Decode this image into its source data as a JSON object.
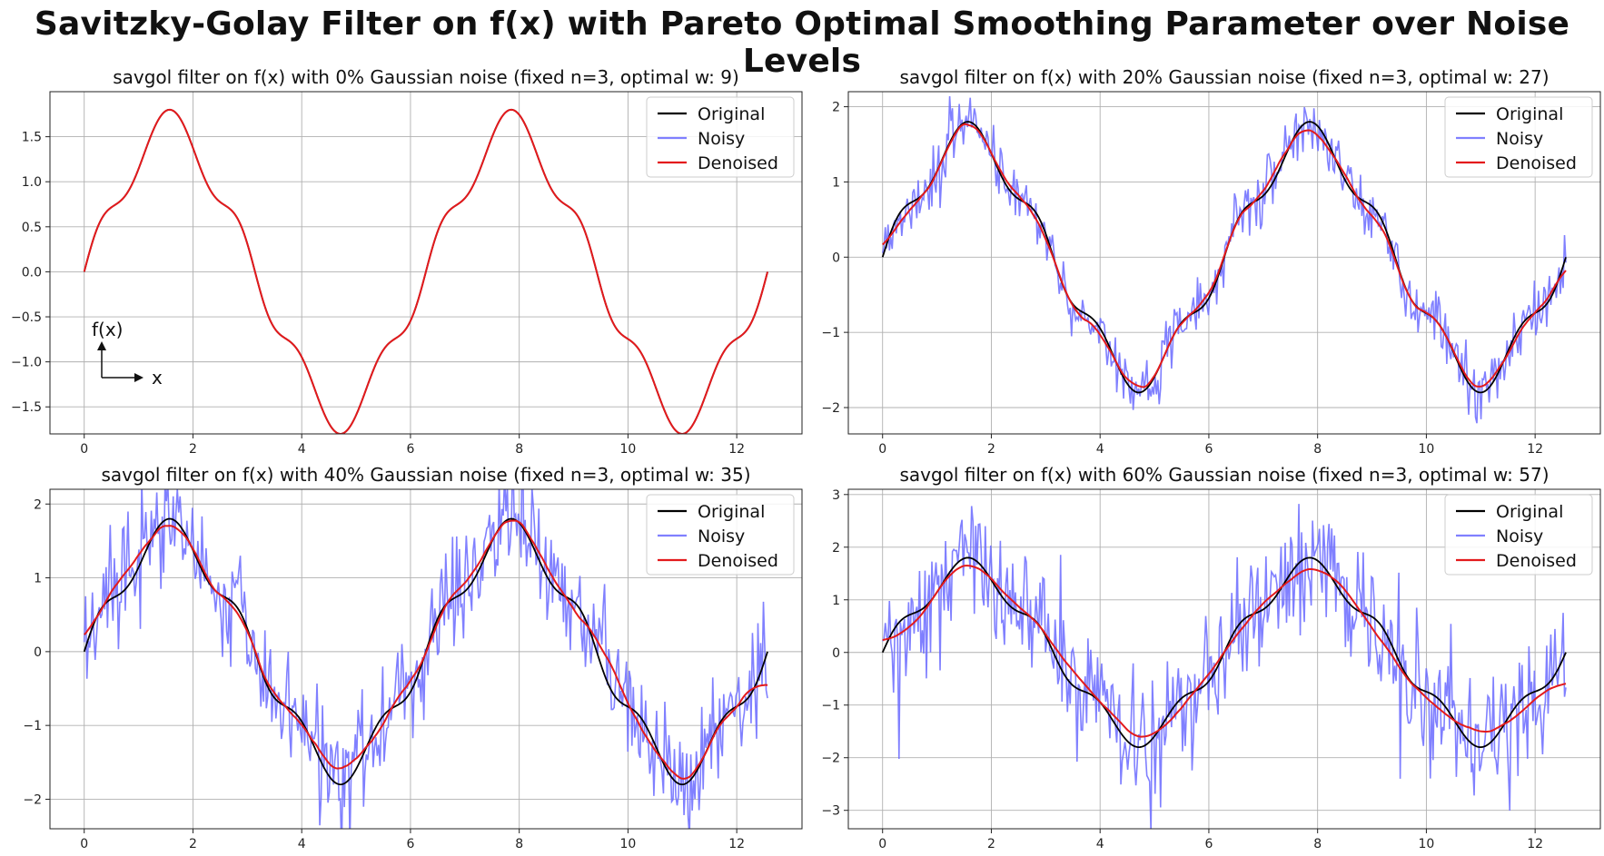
{
  "suptitle": "Savitzky-Golay Filter on f(x) with Pareto Optimal Smoothing Parameter over Noise Levels",
  "colors": {
    "original": "#000000",
    "noisy": "#6a6aff",
    "denoised": "#e31a1c",
    "grid": "#b0b0b0"
  },
  "chart_data": [
    {
      "type": "line",
      "title": "savgol filter on f(x) with 0% Gaussian noise (fixed n=3, optimal w: 9)",
      "noise_level": 0.0,
      "xlim": [
        -0.63,
        13.2
      ],
      "ylim": [
        -1.8,
        2.0
      ],
      "xticks": [
        0,
        2,
        4,
        6,
        8,
        10,
        12
      ],
      "yticks": [
        -1.5,
        -1.0,
        -0.5,
        0.0,
        0.5,
        1.0,
        1.5
      ],
      "ytick_labels": [
        "−1.5",
        "−1.0",
        "−0.5",
        "0.0",
        "0.5",
        "1.0",
        "1.5"
      ],
      "x_domain": [
        0,
        12.566
      ],
      "series": [
        {
          "name": "Original",
          "color": "#000000"
        },
        {
          "name": "Noisy",
          "color": "#6a6aff"
        },
        {
          "name": "Denoised",
          "color": "#e31a1c"
        }
      ],
      "legend": "top-right",
      "grid": true,
      "annotation": {
        "ylabel": "f(x)",
        "xlabel": "x"
      }
    },
    {
      "type": "line",
      "title": "savgol filter on f(x) with 20% Gaussian noise (fixed n=3, optimal w: 27)",
      "noise_level": 0.2,
      "xlim": [
        -0.63,
        13.2
      ],
      "ylim": [
        -2.35,
        2.2
      ],
      "xticks": [
        0,
        2,
        4,
        6,
        8,
        10,
        12
      ],
      "yticks": [
        -2,
        -1,
        0,
        1,
        2
      ],
      "ytick_labels": [
        "−2",
        "−1",
        "0",
        "1",
        "2"
      ],
      "x_domain": [
        0,
        12.566
      ],
      "series": [
        {
          "name": "Original",
          "color": "#000000"
        },
        {
          "name": "Noisy",
          "color": "#6a6aff"
        },
        {
          "name": "Denoised",
          "color": "#e31a1c"
        }
      ],
      "legend": "top-right",
      "grid": true
    },
    {
      "type": "line",
      "title": "savgol filter on f(x) with 40% Gaussian noise (fixed n=3, optimal w: 35)",
      "noise_level": 0.4,
      "xlim": [
        -0.63,
        13.2
      ],
      "ylim": [
        -2.4,
        2.2
      ],
      "xticks": [
        0,
        2,
        4,
        6,
        8,
        10,
        12
      ],
      "yticks": [
        -2,
        -1,
        0,
        1,
        2
      ],
      "ytick_labels": [
        "−2",
        "−1",
        "0",
        "1",
        "2"
      ],
      "x_domain": [
        0,
        12.566
      ],
      "series": [
        {
          "name": "Original",
          "color": "#000000"
        },
        {
          "name": "Noisy",
          "color": "#6a6aff"
        },
        {
          "name": "Denoised",
          "color": "#e31a1c"
        }
      ],
      "legend": "top-right",
      "grid": true
    },
    {
      "type": "line",
      "title": "savgol filter on f(x) with 60% Gaussian noise (fixed n=3, optimal w: 57)",
      "noise_level": 0.6,
      "xlim": [
        -0.63,
        13.2
      ],
      "ylim": [
        -3.35,
        3.1
      ],
      "xticks": [
        0,
        2,
        4,
        6,
        8,
        10,
        12
      ],
      "yticks": [
        -3,
        -2,
        -1,
        0,
        1,
        2,
        3
      ],
      "ytick_labels": [
        "−3",
        "−2",
        "−1",
        "0",
        "1",
        "2",
        "3"
      ],
      "x_domain": [
        0,
        12.566
      ],
      "series": [
        {
          "name": "Original",
          "color": "#000000"
        },
        {
          "name": "Noisy",
          "color": "#6a6aff"
        },
        {
          "name": "Denoised",
          "color": "#e31a1c"
        }
      ],
      "legend": "top-right",
      "grid": true
    }
  ]
}
